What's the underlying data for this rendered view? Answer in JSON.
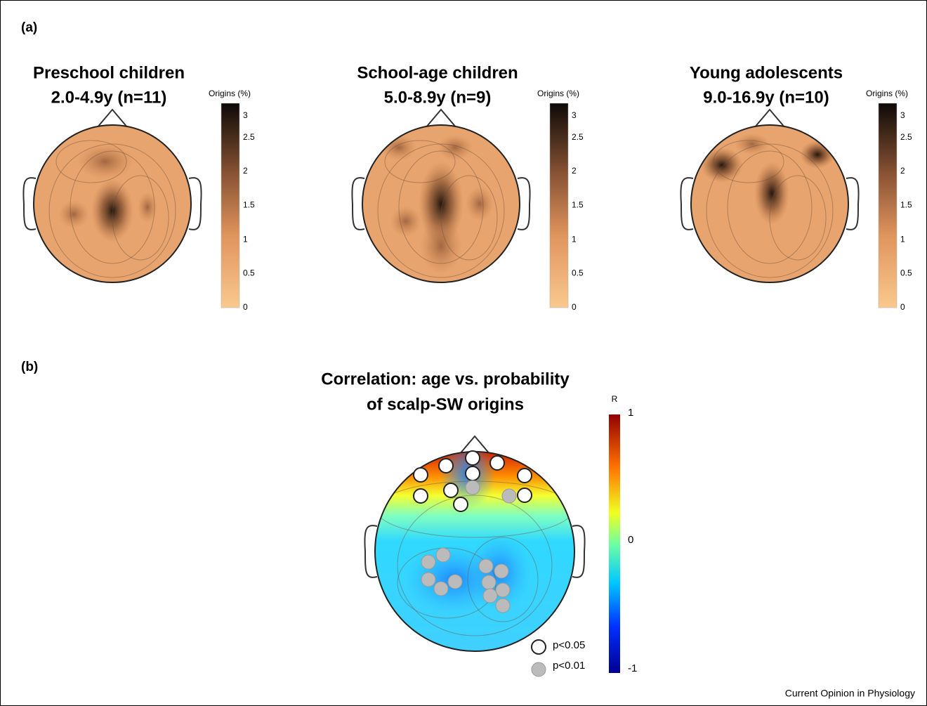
{
  "panel_a": {
    "label": "(a)",
    "maps": [
      {
        "title": "Preschool children",
        "subtitle": "2.0-4.9y (n=11)",
        "colorbar": {
          "label": "Origins (%)",
          "ticks": [
            "3",
            "2.5",
            "2",
            "1.5",
            "1",
            "0.5",
            "0"
          ]
        }
      },
      {
        "title": "School-age children",
        "subtitle": "5.0-8.9y (n=9)",
        "colorbar": {
          "label": "Origins (%)",
          "ticks": [
            "3",
            "2.5",
            "2",
            "1.5",
            "1",
            "0.5",
            "0"
          ]
        }
      },
      {
        "title": "Young adolescents",
        "subtitle": "9.0-16.9y (n=10)",
        "colorbar": {
          "label": "Origins (%)",
          "ticks": [
            "3",
            "2.5",
            "2",
            "1.5",
            "1",
            "0.5",
            "0"
          ]
        }
      }
    ]
  },
  "panel_b": {
    "label": "(b)",
    "title_lines": [
      "Correlation: age vs. probability",
      "of scalp-SW origins"
    ],
    "colorbar": {
      "label": "R",
      "ticks": [
        "1",
        "0",
        "-1"
      ]
    },
    "legend": [
      "p<0.05",
      "p<0.01"
    ]
  },
  "footer": "Current Opinion in Physiology"
}
